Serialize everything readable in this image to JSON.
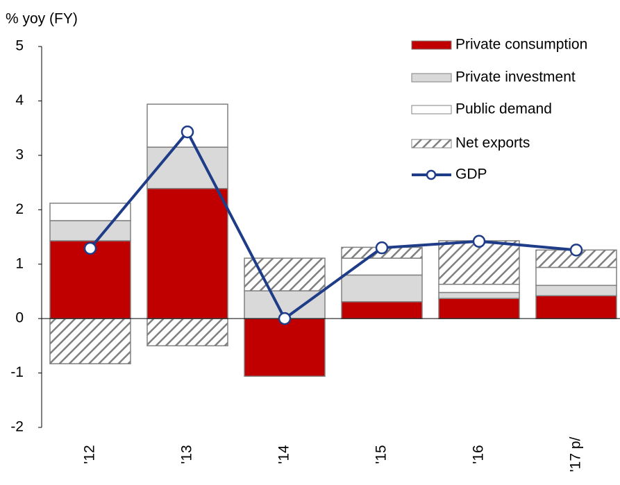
{
  "chart_data": {
    "type": "stacked_bar_line",
    "y_axis_label": "% yoy (FY)",
    "categories": [
      "'12",
      "'13",
      "'14",
      "'15",
      "'16",
      "'17 p/"
    ],
    "ylim": [
      -2,
      5
    ],
    "yticks": [
      -2,
      -1,
      0,
      1,
      2,
      3,
      4,
      5
    ],
    "series": [
      {
        "name": "Private consumption",
        "color": "#c00000",
        "values": [
          1.43,
          2.39,
          -1.06,
          0.31,
          0.37,
          0.42
        ]
      },
      {
        "name": "Private investment",
        "color": "#d9d9d9",
        "values": [
          0.37,
          0.76,
          0.51,
          0.49,
          0.11,
          0.19
        ]
      },
      {
        "name": "Public demand",
        "color": "#ffffff",
        "values": [
          0.32,
          0.79,
          0,
          0.31,
          0.15,
          0.33
        ]
      },
      {
        "name": "Net exports",
        "color": "#7f7f7f",
        "pattern": "hatch",
        "values": [
          -0.83,
          -0.5,
          0.6,
          0.2,
          0.8,
          0.32
        ]
      },
      {
        "name": "GDP",
        "color": "#1f3c88",
        "type": "line",
        "values": [
          1.29,
          3.43,
          0.0,
          1.3,
          1.42,
          1.26
        ]
      }
    ],
    "legend": "top-right"
  }
}
